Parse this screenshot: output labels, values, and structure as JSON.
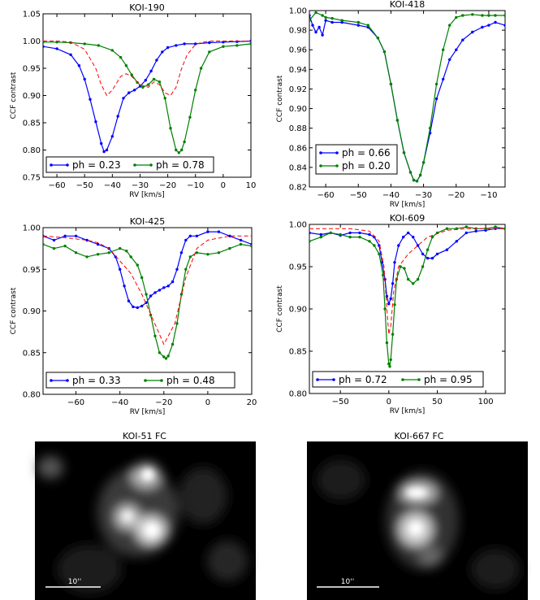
{
  "colors": {
    "blue": "#0000ff",
    "green": "#008000",
    "model": "#ff0000",
    "image_bg": "#000000",
    "scale_bar": "#ffffff"
  },
  "chart_data": [
    {
      "type": "line",
      "title": "KOI-190",
      "xlabel": "RV [km/s]",
      "ylabel": "CCF contrast",
      "xlim": [
        -65,
        10
      ],
      "ylim": [
        0.75,
        1.05
      ],
      "xticks": [
        -60,
        -50,
        -40,
        -30,
        -20,
        -10,
        0,
        10
      ],
      "xticklabels": [
        "−60",
        "−50",
        "−40",
        "−30",
        "−20",
        "−10",
        "0",
        "10"
      ],
      "yticks": [
        0.75,
        0.8,
        0.85,
        0.9,
        0.95,
        1.0,
        1.05
      ],
      "yticklabels": [
        "0.75",
        "0.80",
        "0.85",
        "0.90",
        "0.95",
        "1.00",
        "1.05"
      ],
      "legend_position": "bottom",
      "grid": false,
      "series": [
        {
          "name": "ph = 0.23",
          "color": "blue",
          "x": [
            -65,
            -60,
            -55,
            -52,
            -50,
            -48,
            -46,
            -44,
            -43,
            -42,
            -40,
            -38,
            -36,
            -34,
            -32,
            -30,
            -28,
            -26,
            -24,
            -22,
            -20,
            -17,
            -14,
            -10,
            -5,
            0,
            5,
            10
          ],
          "y": [
            0.99,
            0.986,
            0.975,
            0.955,
            0.93,
            0.893,
            0.852,
            0.812,
            0.797,
            0.8,
            0.825,
            0.862,
            0.895,
            0.905,
            0.91,
            0.917,
            0.928,
            0.945,
            0.965,
            0.98,
            0.988,
            0.992,
            0.995,
            0.995,
            0.997,
            0.998,
            0.999,
            1.0
          ]
        },
        {
          "name": "ph = 0.78",
          "color": "green",
          "x": [
            -65,
            -60,
            -55,
            -50,
            -45,
            -40,
            -37,
            -35,
            -33,
            -31,
            -29,
            -27,
            -25,
            -23,
            -21,
            -19,
            -17,
            -16,
            -15,
            -14,
            -12,
            -10,
            -8,
            -5,
            0,
            5,
            10
          ],
          "y": [
            0.998,
            0.998,
            0.997,
            0.995,
            0.992,
            0.983,
            0.97,
            0.955,
            0.938,
            0.924,
            0.915,
            0.92,
            0.93,
            0.925,
            0.895,
            0.84,
            0.8,
            0.795,
            0.8,
            0.815,
            0.86,
            0.91,
            0.95,
            0.98,
            0.99,
            0.992,
            0.995
          ]
        },
        {
          "name": "",
          "color": "model",
          "dashed": true,
          "x": [
            -65,
            -60,
            -55,
            -50,
            -46,
            -44,
            -42,
            -40,
            -37,
            -35,
            -33,
            -30,
            -27,
            -25,
            -23,
            -21,
            -19,
            -17,
            -15,
            -13,
            -10,
            -7,
            -4,
            0,
            5,
            10
          ],
          "y": [
            1.0,
            1.0,
            0.998,
            0.985,
            0.95,
            0.92,
            0.9,
            0.91,
            0.935,
            0.94,
            0.935,
            0.92,
            0.915,
            0.925,
            0.92,
            0.905,
            0.9,
            0.915,
            0.95,
            0.975,
            0.994,
            0.998,
            1.0,
            1.0,
            1.0,
            1.0
          ]
        }
      ]
    },
    {
      "type": "line",
      "title": "KOI-418",
      "xlabel": "RV [km/s]",
      "ylabel": "CCF contrast",
      "xlim": [
        -65,
        -5
      ],
      "ylim": [
        0.82,
        1.0
      ],
      "xticks": [
        -60,
        -50,
        -40,
        -30,
        -20,
        -10
      ],
      "xticklabels": [
        "−60",
        "−50",
        "−40",
        "−30",
        "−20",
        "−10"
      ],
      "yticks": [
        0.82,
        0.84,
        0.86,
        0.88,
        0.9,
        0.92,
        0.94,
        0.96,
        0.98,
        1.0
      ],
      "yticklabels": [
        "0.82",
        "0.84",
        "0.86",
        "0.88",
        "0.90",
        "0.92",
        "0.94",
        "0.96",
        "0.98",
        "1.00"
      ],
      "legend_position": "bottom-left",
      "grid": false,
      "series": [
        {
          "name": "ph = 0.66",
          "color": "blue",
          "x": [
            -65,
            -64,
            -63,
            -62,
            -61,
            -60,
            -58,
            -55,
            -50,
            -47,
            -44,
            -42,
            -40,
            -38,
            -36,
            -34,
            -33,
            -32,
            -31,
            -30,
            -28,
            -26,
            -24,
            -22,
            -20,
            -18,
            -15,
            -12,
            -10,
            -8,
            -5
          ],
          "y": [
            0.995,
            0.985,
            0.978,
            0.983,
            0.975,
            0.99,
            0.988,
            0.988,
            0.985,
            0.983,
            0.972,
            0.958,
            0.925,
            0.888,
            0.855,
            0.835,
            0.827,
            0.826,
            0.832,
            0.845,
            0.875,
            0.91,
            0.93,
            0.95,
            0.96,
            0.97,
            0.978,
            0.983,
            0.985,
            0.988,
            0.985
          ]
        },
        {
          "name": "ph = 0.20",
          "color": "green",
          "x": [
            -65,
            -63,
            -61,
            -60,
            -58,
            -55,
            -50,
            -47,
            -44,
            -42,
            -40,
            -38,
            -36,
            -34,
            -33,
            -32,
            -31,
            -30,
            -28,
            -26,
            -24,
            -22,
            -20,
            -18,
            -15,
            -12,
            -10,
            -8,
            -5
          ],
          "y": [
            0.99,
            0.998,
            0.995,
            0.993,
            0.992,
            0.99,
            0.988,
            0.985,
            0.972,
            0.958,
            0.925,
            0.888,
            0.855,
            0.835,
            0.827,
            0.826,
            0.832,
            0.845,
            0.88,
            0.925,
            0.96,
            0.985,
            0.993,
            0.995,
            0.996,
            0.995,
            0.995,
            0.995,
            0.995
          ]
        }
      ]
    },
    {
      "type": "line",
      "title": "KOI-425",
      "xlabel": "RV [km/s]",
      "ylabel": "CCF contrast",
      "xlim": [
        -75,
        20
      ],
      "ylim": [
        0.8,
        1.0
      ],
      "xticks": [
        -60,
        -40,
        -20,
        0,
        20
      ],
      "xticklabels": [
        "−60",
        "−40",
        "−20",
        "0",
        "20"
      ],
      "yticks": [
        0.8,
        0.85,
        0.9,
        0.95,
        1.0
      ],
      "yticklabels": [
        "0.80",
        "0.85",
        "0.90",
        "0.95",
        "1.00"
      ],
      "legend_position": "bottom",
      "grid": false,
      "series": [
        {
          "name": "ph = 0.33",
          "color": "blue",
          "x": [
            -75,
            -70,
            -65,
            -60,
            -55,
            -50,
            -45,
            -42,
            -40,
            -38,
            -36,
            -34,
            -32,
            -30,
            -28,
            -26,
            -24,
            -22,
            -20,
            -18,
            -16,
            -14,
            -12,
            -10,
            -8,
            -5,
            0,
            5,
            10,
            15,
            20
          ],
          "y": [
            0.99,
            0.985,
            0.99,
            0.99,
            0.985,
            0.98,
            0.975,
            0.965,
            0.95,
            0.93,
            0.912,
            0.905,
            0.904,
            0.906,
            0.91,
            0.918,
            0.922,
            0.925,
            0.928,
            0.93,
            0.935,
            0.95,
            0.97,
            0.985,
            0.99,
            0.99,
            0.995,
            0.995,
            0.99,
            0.985,
            0.98
          ]
        },
        {
          "name": "ph = 0.48",
          "color": "green",
          "x": [
            -75,
            -70,
            -65,
            -60,
            -55,
            -50,
            -45,
            -40,
            -37,
            -35,
            -32,
            -30,
            -28,
            -26,
            -24,
            -22,
            -20,
            -19,
            -18,
            -16,
            -14,
            -12,
            -10,
            -8,
            -5,
            0,
            5,
            10,
            15,
            20
          ],
          "y": [
            0.98,
            0.975,
            0.978,
            0.97,
            0.965,
            0.968,
            0.97,
            0.975,
            0.972,
            0.965,
            0.955,
            0.94,
            0.92,
            0.895,
            0.87,
            0.85,
            0.845,
            0.843,
            0.846,
            0.86,
            0.885,
            0.92,
            0.95,
            0.965,
            0.97,
            0.968,
            0.97,
            0.975,
            0.98,
            0.978
          ]
        },
        {
          "name": "",
          "color": "model",
          "dashed": true,
          "x": [
            -75,
            -65,
            -55,
            -50,
            -45,
            -40,
            -35,
            -30,
            -25,
            -20,
            -15,
            -10,
            -5,
            0,
            10,
            20
          ],
          "y": [
            0.99,
            0.988,
            0.985,
            0.982,
            0.975,
            0.96,
            0.945,
            0.92,
            0.89,
            0.86,
            0.885,
            0.94,
            0.975,
            0.985,
            0.99,
            0.99
          ]
        }
      ]
    },
    {
      "type": "line",
      "title": "KOI-609",
      "xlabel": "RV [km/s]",
      "ylabel": "CCF contrast",
      "xlim": [
        -82,
        120
      ],
      "ylim": [
        0.8,
        1.0
      ],
      "xticks": [
        -50,
        0,
        50,
        100
      ],
      "xticklabels": [
        "−50",
        "0",
        "50",
        "100"
      ],
      "yticks": [
        0.8,
        0.85,
        0.9,
        0.95,
        1.0
      ],
      "yticklabels": [
        "0.80",
        "0.85",
        "0.90",
        "0.95",
        "1.00"
      ],
      "legend_position": "bottom",
      "grid": false,
      "series": [
        {
          "name": "ph = 0.72",
          "color": "blue",
          "x": [
            -82,
            -70,
            -60,
            -50,
            -40,
            -30,
            -20,
            -15,
            -10,
            -7,
            -4,
            -2,
            0,
            2,
            4,
            6,
            10,
            15,
            20,
            25,
            30,
            35,
            40,
            45,
            50,
            60,
            70,
            80,
            90,
            100,
            110,
            120
          ],
          "y": [
            0.99,
            0.988,
            0.99,
            0.987,
            0.99,
            0.99,
            0.988,
            0.985,
            0.975,
            0.955,
            0.935,
            0.915,
            0.906,
            0.912,
            0.93,
            0.955,
            0.975,
            0.985,
            0.99,
            0.985,
            0.975,
            0.965,
            0.96,
            0.96,
            0.965,
            0.97,
            0.98,
            0.99,
            0.992,
            0.993,
            0.995,
            0.995
          ]
        },
        {
          "name": "ph = 0.95",
          "color": "green",
          "x": [
            -82,
            -70,
            -60,
            -50,
            -40,
            -30,
            -20,
            -15,
            -10,
            -6,
            -4,
            -2,
            0,
            1,
            2,
            4,
            6,
            8,
            12,
            16,
            20,
            25,
            30,
            35,
            40,
            45,
            50,
            60,
            70,
            80,
            90,
            100,
            110,
            120
          ],
          "y": [
            0.98,
            0.985,
            0.99,
            0.988,
            0.985,
            0.985,
            0.98,
            0.975,
            0.965,
            0.94,
            0.9,
            0.86,
            0.835,
            0.832,
            0.84,
            0.87,
            0.905,
            0.935,
            0.95,
            0.948,
            0.935,
            0.93,
            0.935,
            0.95,
            0.97,
            0.985,
            0.99,
            0.995,
            0.995,
            0.997,
            0.995,
            0.995,
            0.997,
            0.995
          ]
        },
        {
          "name": "",
          "color": "model",
          "dashed": true,
          "x": [
            -82,
            -40,
            -20,
            -10,
            -5,
            -2,
            0,
            2,
            5,
            10,
            20,
            30,
            40,
            60,
            80,
            120
          ],
          "y": [
            0.995,
            0.995,
            0.992,
            0.98,
            0.95,
            0.9,
            0.87,
            0.88,
            0.92,
            0.95,
            0.965,
            0.975,
            0.985,
            0.993,
            0.995,
            0.995
          ]
        }
      ]
    }
  ],
  "images": [
    {
      "title": "KOI-51 FC",
      "scale_label": "10''"
    },
    {
      "title": "KOI-667 FC",
      "scale_label": "10''"
    }
  ]
}
